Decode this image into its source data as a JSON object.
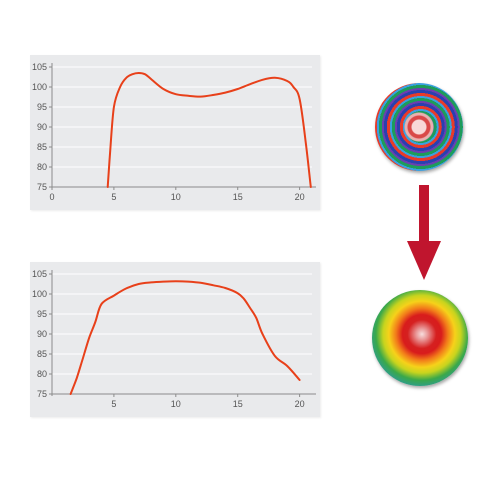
{
  "colors": {
    "panel_bg": "#e9eaec",
    "curve": "#e8401a",
    "arrow": "#c0152e"
  },
  "chart_data": [
    {
      "type": "line",
      "xlim": [
        0,
        21
      ],
      "ylim": [
        75,
        105
      ],
      "xticks": [
        0,
        5,
        10,
        15,
        20
      ],
      "yticks": [
        75,
        80,
        85,
        90,
        95,
        100,
        105
      ],
      "grid": "horizontal",
      "series": [
        {
          "x": [
            4.5,
            4.7,
            5.0,
            5.5,
            6.0,
            6.5,
            7.0,
            7.5,
            8.0,
            9.0,
            10.0,
            11.0,
            12.0,
            13.0,
            14.0,
            15.0,
            16.0,
            17.0,
            18.0,
            19.0,
            19.5,
            20.0,
            20.5,
            20.9
          ],
          "y": [
            75,
            84,
            95,
            100,
            102.3,
            103.2,
            103.5,
            103.2,
            102.0,
            99.5,
            98.2,
            97.8,
            97.6,
            98.0,
            98.6,
            99.5,
            100.7,
            101.8,
            102.3,
            101.5,
            100.0,
            97.0,
            86.0,
            75.0
          ]
        }
      ]
    },
    {
      "type": "line",
      "xlim": [
        0,
        21
      ],
      "ylim": [
        75,
        105
      ],
      "xticks": [
        5,
        10,
        15,
        20
      ],
      "yticks": [
        75,
        80,
        85,
        90,
        95,
        100,
        105
      ],
      "grid": "horizontal",
      "series": [
        {
          "x": [
            1.5,
            2.0,
            2.5,
            3.0,
            3.5,
            4.0,
            5.0,
            6.0,
            7.0,
            8.0,
            9.0,
            10.0,
            11.0,
            12.0,
            13.0,
            14.0,
            15.0,
            15.5,
            16.0,
            16.5,
            17.0,
            18.0,
            19.0,
            20.0
          ],
          "y": [
            75,
            79,
            84,
            89,
            93,
            97.5,
            99.6,
            101.4,
            102.5,
            102.9,
            103.1,
            103.2,
            103.1,
            102.8,
            102.2,
            101.5,
            100.2,
            98.8,
            96.5,
            94.0,
            90.0,
            84.5,
            82.0,
            78.5
          ]
        }
      ]
    }
  ]
}
